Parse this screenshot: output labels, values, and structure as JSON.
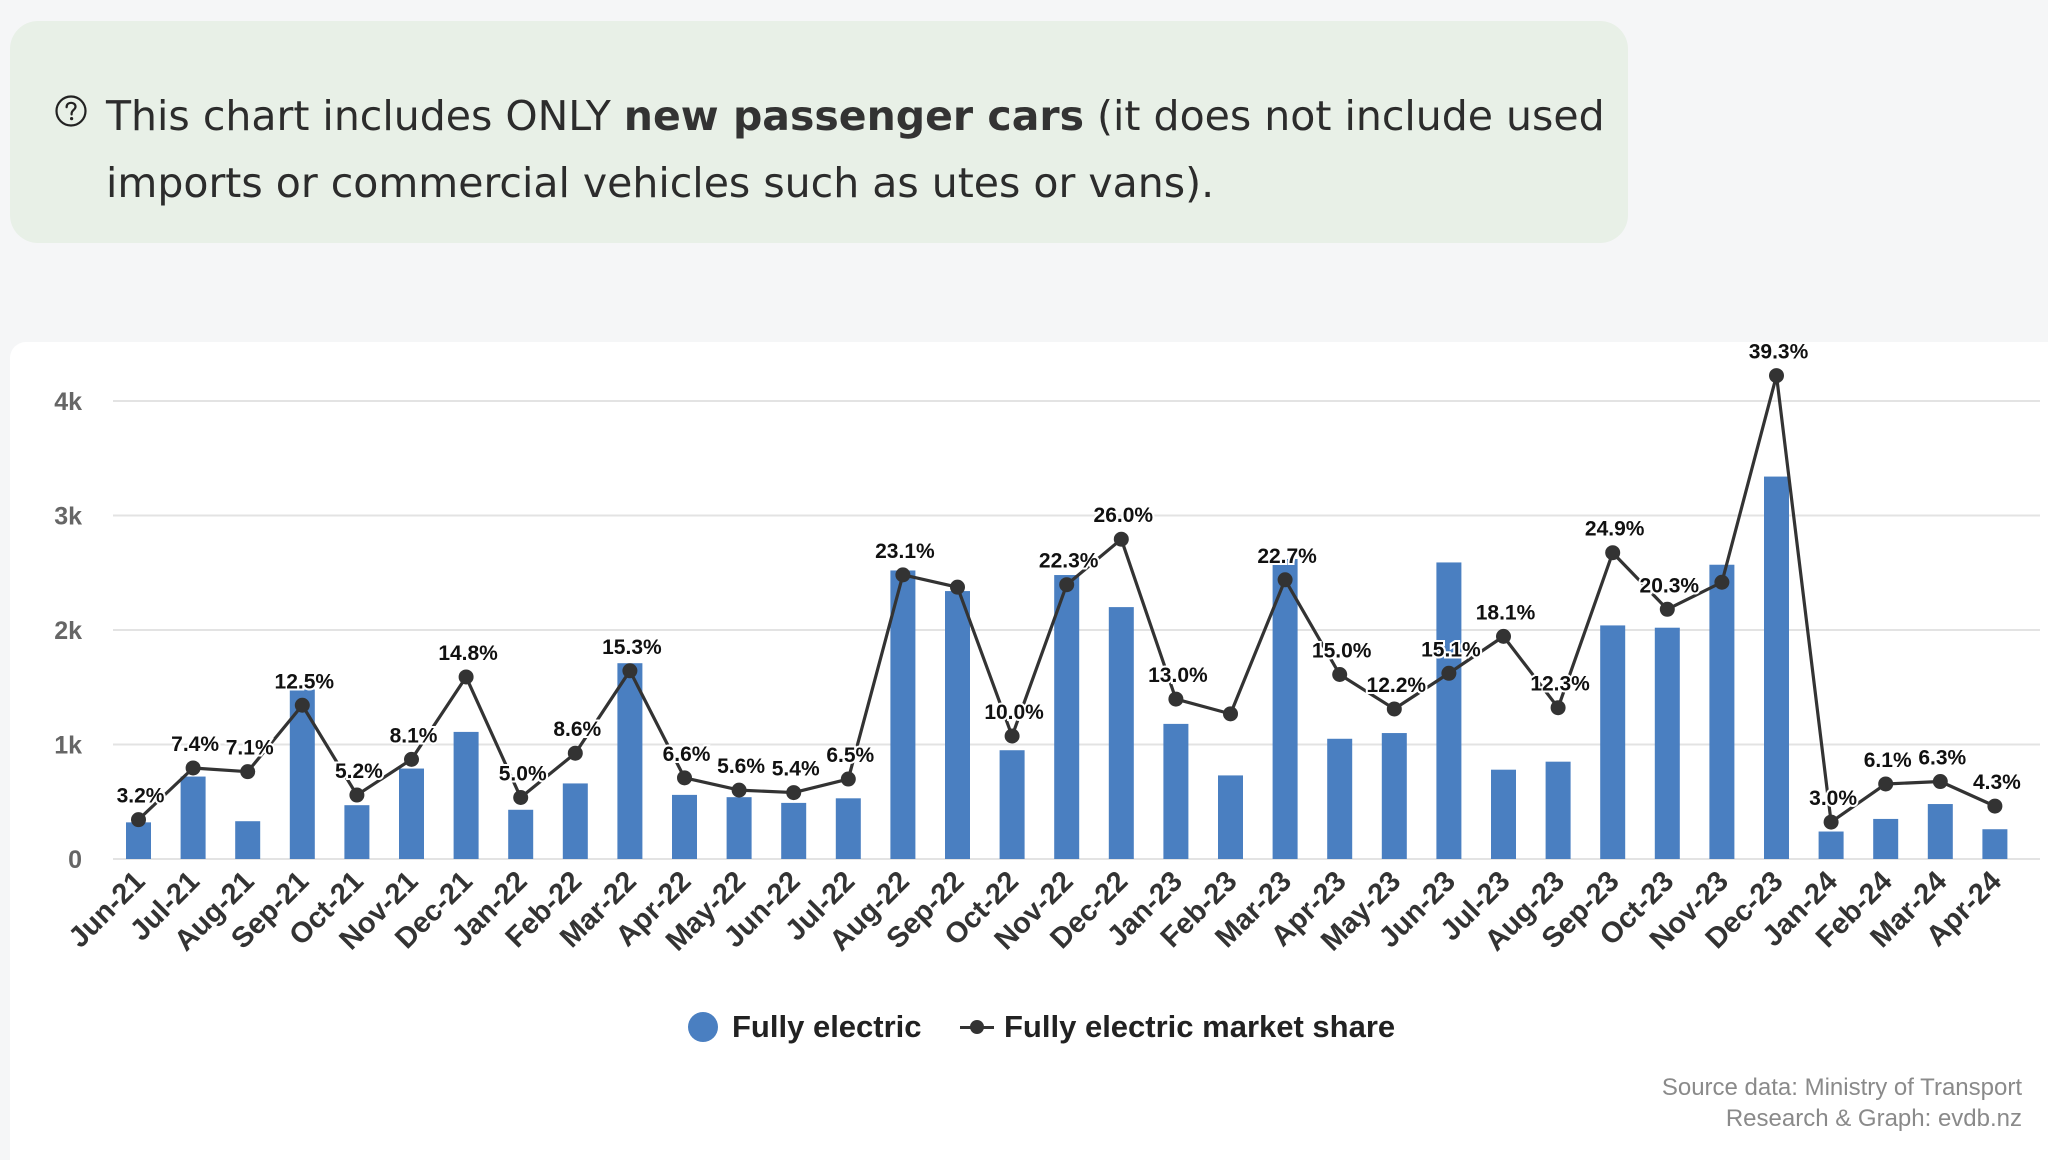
{
  "info": {
    "icon": "question-circle-icon",
    "text_before": "This chart includes ONLY ",
    "text_bold": "new passenger cars",
    "text_after": " (it does not include used imports or commercial vehicles such as utes or vans)."
  },
  "colors": {
    "bar": "#4a7fc1",
    "line": "#333333",
    "grid": "#e3e3e3",
    "info_bg": "#e8f0e7"
  },
  "chart_data": {
    "type": "bar",
    "categories": [
      "Jun-21",
      "Jul-21",
      "Aug-21",
      "Sep-21",
      "Oct-21",
      "Nov-21",
      "Dec-21",
      "Jan-22",
      "Feb-22",
      "Mar-22",
      "Apr-22",
      "May-22",
      "Jun-22",
      "Jul-22",
      "Aug-22",
      "Sep-22",
      "Oct-22",
      "Nov-22",
      "Dec-22",
      "Jan-23",
      "Feb-23",
      "Mar-23",
      "Apr-23",
      "May-23",
      "Jun-23",
      "Jul-23",
      "Aug-23",
      "Sep-23",
      "Oct-23",
      "Nov-23",
      "Dec-23",
      "Jan-24",
      "Feb-24",
      "Mar-24",
      "Apr-24"
    ],
    "y_ticks": [
      "0",
      "1k",
      "2k",
      "3k",
      "4k"
    ],
    "ylim": [
      0,
      4000
    ],
    "grid": true,
    "legend_position": "bottom",
    "series": [
      {
        "name": "Fully electric",
        "type": "bar",
        "values": [
          320,
          720,
          330,
          1480,
          470,
          790,
          1110,
          430,
          660,
          1710,
          560,
          540,
          490,
          530,
          2520,
          2340,
          950,
          2480,
          2200,
          1180,
          730,
          2620,
          1050,
          1100,
          2590,
          780,
          850,
          2040,
          2020,
          2570,
          3340,
          240,
          350,
          480,
          260
        ]
      },
      {
        "name": "Fully electric market share",
        "type": "line",
        "values": [
          3.2,
          7.4,
          7.1,
          12.5,
          5.2,
          8.1,
          14.8,
          5.0,
          8.6,
          15.3,
          6.6,
          5.6,
          5.4,
          6.5,
          23.1,
          22.1,
          10.0,
          22.3,
          26.0,
          13.0,
          11.8,
          22.7,
          15.0,
          12.2,
          15.1,
          18.1,
          12.3,
          24.9,
          20.3,
          22.5,
          39.3,
          3.0,
          6.1,
          6.3,
          4.3
        ],
        "labels": [
          "3.2%",
          "7.4%",
          "7.1%",
          "12.5%",
          "5.2%",
          "8.1%",
          "14.8%",
          "5.0%",
          "8.6%",
          "15.3%",
          "6.6%",
          "5.6%",
          "5.4%",
          "6.5%",
          "23.1%",
          "",
          "10.0%",
          "22.3%",
          "26.0%",
          "13.0%",
          "",
          "22.7%",
          "15.0%",
          "12.2%",
          "15.1%",
          "18.1%",
          "12.3%",
          "24.9%",
          "20.3%",
          "",
          "39.3%",
          "3.0%",
          "6.1%",
          "6.3%",
          "4.3%"
        ]
      }
    ]
  },
  "source": {
    "line1": "Source data: Ministry of Transport",
    "line2": "Research & Graph: evdb.nz"
  }
}
